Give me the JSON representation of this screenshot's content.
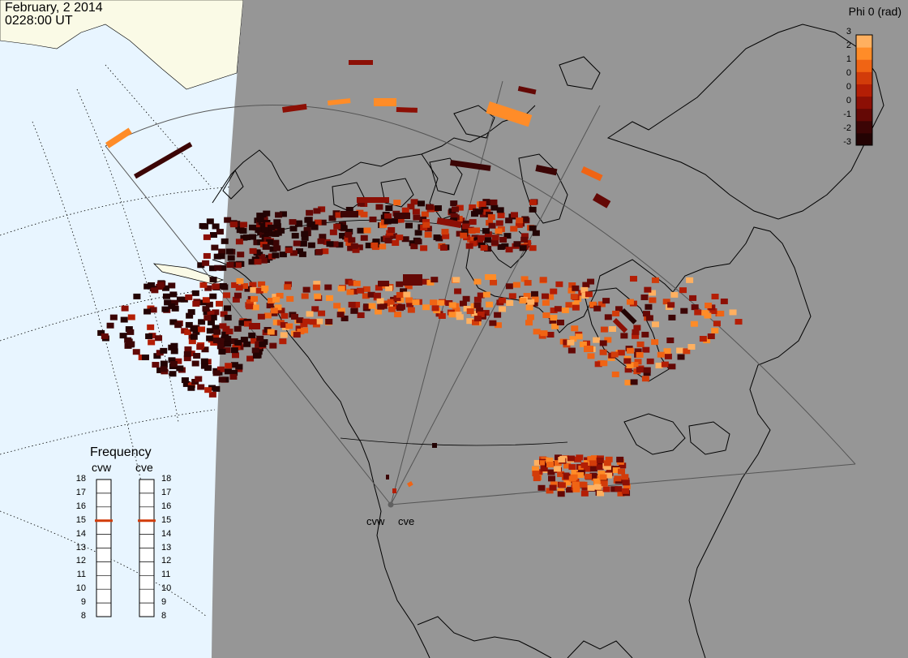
{
  "header": {
    "date": "February, 2 2014",
    "time": "0228:00 UT"
  },
  "colorbar": {
    "title": "Phi 0 (rad)",
    "ticks": [
      "3",
      "2",
      "1",
      "0",
      "0",
      "0",
      "-1",
      "-2",
      "-3"
    ],
    "colors": [
      "#ffb060",
      "#ff8c28",
      "#f06414",
      "#d23c0a",
      "#b41e05",
      "#8c0f05",
      "#640805",
      "#3c0505",
      "#230303"
    ]
  },
  "frequency": {
    "title": "Frequency",
    "radars": [
      "cvw",
      "cve"
    ],
    "scale": [
      "18",
      "17",
      "16",
      "15",
      "14",
      "13",
      "12",
      "11",
      "10",
      "9",
      "8"
    ],
    "cvw_mhz": 15,
    "cve_mhz": 15,
    "marker_color": "#d23c0a"
  },
  "stations": {
    "west_label": "cvw",
    "east_label": "cve"
  },
  "map": {
    "land_color": "#fafae6",
    "ocean_color": "#e8f5ff",
    "night_color": "#969696"
  }
}
